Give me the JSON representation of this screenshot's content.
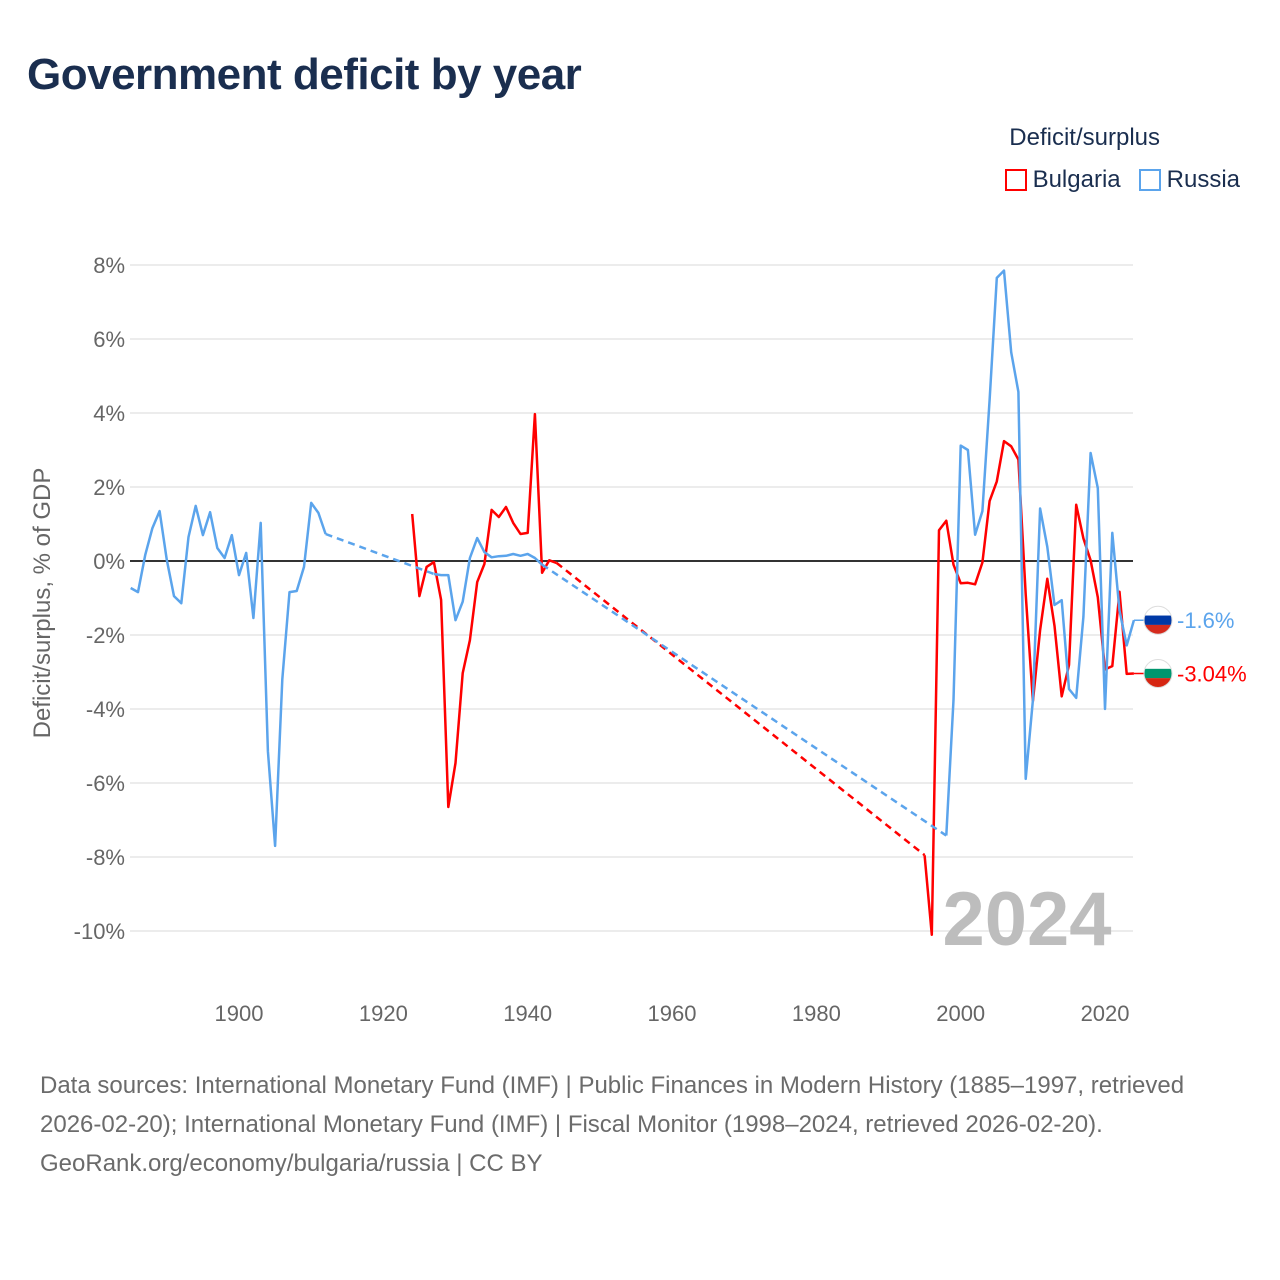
{
  "title": "Government deficit by year",
  "legend": {
    "title": "Deficit/surplus",
    "items": [
      {
        "name": "Bulgaria",
        "color": "#ff0000"
      },
      {
        "name": "Russia",
        "color": "#5ba4ec"
      }
    ]
  },
  "footer": {
    "sources": "Data sources: International Monetary Fund (IMF) | Public Finances in Modern History (1885–1997, retrieved 2026-02-20); International Monetary Fund (IMF) | Fiscal Monitor (1998–2024, retrieved 2026-02-20).",
    "credit": "GeoRank.org/economy/bulgaria/russia | CC BY"
  },
  "chart_data": {
    "type": "line",
    "title": "Government deficit by year",
    "xlabel": "",
    "ylabel": "Deficit/surplus, % of GDP",
    "xlim": [
      1885,
      2024
    ],
    "ylim": [
      -10,
      8
    ],
    "x_ticks": [
      "1900",
      "1920",
      "1940",
      "1960",
      "1980",
      "2000",
      "2020"
    ],
    "y_ticks": [
      "8%",
      "6%",
      "4%",
      "2%",
      "0%",
      "-2%",
      "-4%",
      "-6%",
      "-8%",
      "-10%"
    ],
    "year_label": "2024",
    "grid": true,
    "series": [
      {
        "name": "Russia",
        "color": "#5ba4ec",
        "end_label": "-1.6%",
        "x": [
          1885,
          1886,
          1887,
          1888,
          1889,
          1890,
          1891,
          1892,
          1893,
          1894,
          1895,
          1896,
          1897,
          1898,
          1899,
          1900,
          1901,
          1902,
          1903,
          1904,
          1905,
          1906,
          1907,
          1908,
          1909,
          1910,
          1911,
          1912,
          1927,
          1928,
          1929,
          1930,
          1931,
          1932,
          1933,
          1934,
          1935,
          1936,
          1937,
          1938,
          1939,
          1940,
          1941,
          1942,
          1998,
          1999,
          2000,
          2001,
          2002,
          2003,
          2004,
          2005,
          2006,
          2007,
          2008,
          2009,
          2010,
          2011,
          2012,
          2013,
          2014,
          2015,
          2016,
          2017,
          2018,
          2019,
          2020,
          2021,
          2022,
          2023,
          2024
        ],
        "y": [
          -0.73,
          -0.84,
          0.16,
          0.89,
          1.35,
          0.03,
          -0.95,
          -1.14,
          0.65,
          1.49,
          0.7,
          1.32,
          0.35,
          0.08,
          0.7,
          -0.38,
          0.22,
          -1.54,
          1.03,
          -5.14,
          -7.7,
          -3.2,
          -0.84,
          -0.81,
          -0.16,
          1.57,
          1.3,
          0.73,
          -0.35,
          -0.38,
          -0.38,
          -1.6,
          -1.1,
          0.08,
          0.62,
          0.24,
          0.1,
          0.13,
          0.14,
          0.19,
          0.14,
          0.19,
          0.08,
          -0.1,
          -7.42,
          -3.76,
          3.12,
          3.0,
          0.71,
          1.35,
          4.35,
          7.65,
          7.85,
          5.64,
          4.57,
          -5.89,
          -3.76,
          1.42,
          0.38,
          -1.19,
          -1.06,
          -3.46,
          -3.7,
          -1.51,
          2.92,
          1.97,
          -4.0,
          0.76,
          -1.34,
          -2.28,
          -1.6
        ]
      },
      {
        "name": "Bulgaria",
        "color": "#ff0000",
        "end_label": "-3.04%",
        "x": [
          1924,
          1925,
          1926,
          1927,
          1928,
          1929,
          1930,
          1931,
          1932,
          1933,
          1934,
          1935,
          1936,
          1937,
          1938,
          1939,
          1940,
          1941,
          1942,
          1943,
          1944,
          1995,
          1996,
          1997,
          1998,
          1999,
          2000,
          2001,
          2002,
          2003,
          2004,
          2005,
          2006,
          2007,
          2008,
          2009,
          2010,
          2011,
          2012,
          2013,
          2014,
          2015,
          2016,
          2017,
          2018,
          2019,
          2020,
          2021,
          2022,
          2023,
          2024
        ],
        "y": [
          1.27,
          -0.95,
          -0.16,
          -0.03,
          -1.05,
          -6.65,
          -5.46,
          -3.03,
          -2.14,
          -0.57,
          -0.08,
          1.38,
          1.19,
          1.46,
          1.03,
          0.73,
          0.76,
          3.97,
          -0.32,
          0.02,
          -0.05,
          -7.95,
          -10.1,
          0.83,
          1.09,
          -0.1,
          -0.6,
          -0.59,
          -0.63,
          -0.04,
          1.62,
          2.15,
          3.24,
          3.1,
          2.74,
          -0.9,
          -3.79,
          -1.87,
          -0.48,
          -1.75,
          -3.66,
          -2.81,
          1.52,
          0.61,
          0.02,
          -0.98,
          -2.93,
          -2.84,
          -0.83,
          -3.05,
          -3.04
        ]
      }
    ]
  }
}
